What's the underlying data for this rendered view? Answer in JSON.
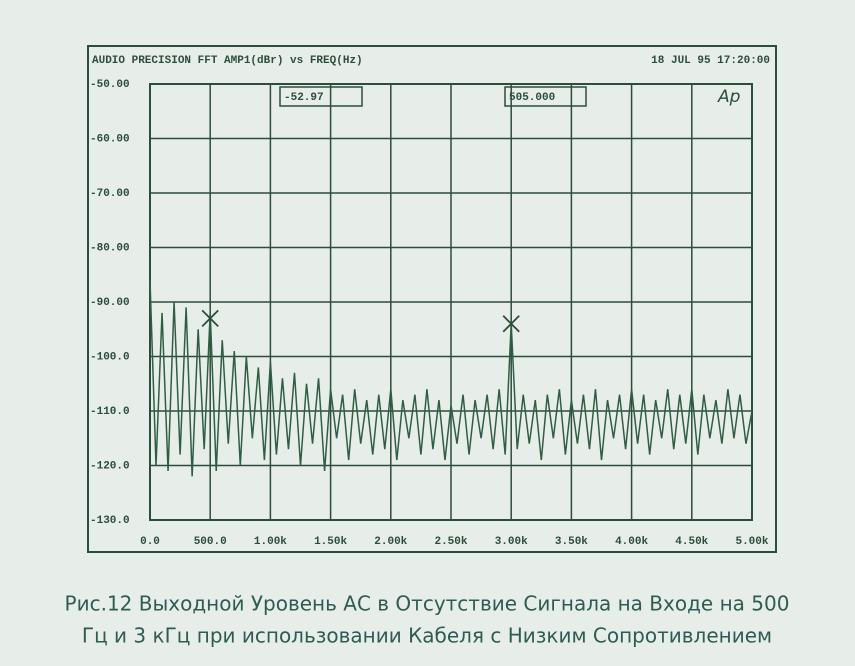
{
  "chart_data": {
    "type": "line",
    "title": "AUDIO PRECISION FFT AMP1(dBr) vs FREQ(Hz)",
    "timestamp": "18 JUL 95 17:20:00",
    "logo": "Ap",
    "readouts": [
      "-52.97",
      "505.000"
    ],
    "caption": [
      "Рис.12 Выходной Уровень АС в Отсутствие Сигнала на Входе на 500",
      "Гц и 3 кГц при использовании Кабеля с Низким Сопротивлением"
    ],
    "color": "#2f5e44",
    "grid": true,
    "xlim": [
      0,
      5000
    ],
    "ylim": [
      -130,
      -50
    ],
    "xticks": [
      {
        "value": 0,
        "label": "0.0"
      },
      {
        "value": 500,
        "label": "500.0"
      },
      {
        "value": 1000,
        "label": "1.00k"
      },
      {
        "value": 1500,
        "label": "1.50k"
      },
      {
        "value": 2000,
        "label": "2.00k"
      },
      {
        "value": 2500,
        "label": "2.50k"
      },
      {
        "value": 3000,
        "label": "3.00k"
      },
      {
        "value": 3500,
        "label": "3.50k"
      },
      {
        "value": 4000,
        "label": "4.00k"
      },
      {
        "value": 4500,
        "label": "4.50k"
      },
      {
        "value": 5000,
        "label": "5.00k"
      }
    ],
    "yticks": [
      {
        "value": -50,
        "label": "-50.00"
      },
      {
        "value": -60,
        "label": "-60.00"
      },
      {
        "value": -70,
        "label": "-70.00"
      },
      {
        "value": -80,
        "label": "-80.00"
      },
      {
        "value": -90,
        "label": "-90.00"
      },
      {
        "value": -100,
        "label": "-100.0"
      },
      {
        "value": -110,
        "label": "-110.0"
      },
      {
        "value": -120,
        "label": "-120.0"
      },
      {
        "value": -130,
        "label": "-130.0"
      }
    ],
    "x": [
      0,
      50,
      100,
      150,
      200,
      250,
      300,
      350,
      400,
      450,
      500,
      550,
      600,
      650,
      700,
      750,
      800,
      850,
      900,
      950,
      1000,
      1050,
      1100,
      1150,
      1200,
      1250,
      1300,
      1350,
      1400,
      1450,
      1500,
      1550,
      1600,
      1650,
      1700,
      1750,
      1800,
      1850,
      1900,
      1950,
      2000,
      2050,
      2100,
      2150,
      2200,
      2250,
      2300,
      2350,
      2400,
      2450,
      2500,
      2550,
      2600,
      2650,
      2700,
      2750,
      2800,
      2850,
      2900,
      2950,
      3000,
      3050,
      3100,
      3150,
      3200,
      3250,
      3300,
      3350,
      3400,
      3450,
      3500,
      3550,
      3600,
      3650,
      3700,
      3750,
      3800,
      3850,
      3900,
      3950,
      4000,
      4050,
      4100,
      4150,
      4200,
      4250,
      4300,
      4350,
      4400,
      4450,
      4500,
      4550,
      4600,
      4650,
      4700,
      4750,
      4800,
      4850,
      4900,
      4950,
      5000
    ],
    "values": [
      -86,
      -120,
      -92,
      -121,
      -90,
      -118,
      -91,
      -122,
      -95,
      -117,
      -92,
      -121,
      -97,
      -116,
      -99,
      -120,
      -100,
      -115,
      -102,
      -119,
      -101,
      -118,
      -104,
      -117,
      -103,
      -120,
      -105,
      -116,
      -104,
      -121,
      -106,
      -115,
      -107,
      -119,
      -106,
      -116,
      -108,
      -118,
      -107,
      -117,
      -106,
      -119,
      -108,
      -115,
      -107,
      -118,
      -106,
      -117,
      -108,
      -119,
      -109,
      -116,
      -107,
      -118,
      -108,
      -115,
      -107,
      -117,
      -106,
      -118,
      -94,
      -117,
      -107,
      -116,
      -108,
      -119,
      -107,
      -115,
      -106,
      -118,
      -108,
      -116,
      -107,
      -117,
      -106,
      -119,
      -108,
      -115,
      -107,
      -117,
      -106,
      -116,
      -107,
      -118,
      -108,
      -115,
      -106,
      -117,
      -107,
      -116,
      -106,
      -118,
      -107,
      -115,
      -108,
      -116,
      -106,
      -115,
      -107,
      -116,
      -110
    ],
    "markers": [
      {
        "x": 500,
        "y": -93
      },
      {
        "x": 3000,
        "y": -94
      }
    ]
  }
}
